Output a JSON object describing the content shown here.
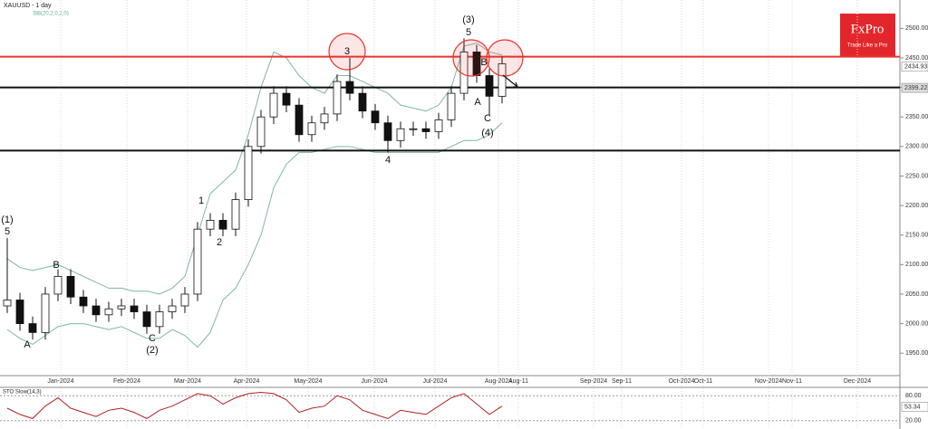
{
  "chart_data": {
    "type": "candlestick",
    "title": "XAUUSD - 1 day",
    "subtitle": "BB(20,2,0,2,0)",
    "ylim": [
      1912,
      2548
    ],
    "yticks": [
      {
        "value": 1950,
        "label": "1950.00"
      },
      {
        "value": 2000,
        "label": "2000.00"
      },
      {
        "value": 2050,
        "label": "2050.00"
      },
      {
        "value": 2100,
        "label": "2100.00"
      },
      {
        "value": 2150,
        "label": "2150.00"
      },
      {
        "value": 2200,
        "label": "2200.00"
      },
      {
        "value": 2250,
        "label": "2250.00"
      },
      {
        "value": 2300,
        "label": "2300.00"
      },
      {
        "value": 2350,
        "label": "2350.00"
      },
      {
        "value": 2400,
        "label": "2400.00"
      },
      {
        "value": 2450,
        "label": "2450.00"
      },
      {
        "value": 2500,
        "label": "2500.00"
      }
    ],
    "open": [
      2030,
      2040,
      2000,
      1985,
      2050,
      2080,
      2045,
      2030,
      2015,
      2025,
      2030,
      2020,
      1995,
      2020,
      2030,
      2050,
      2160,
      2175,
      2160,
      2210,
      2300,
      2350,
      2390,
      2370,
      2320,
      2340,
      2355,
      2410,
      2390,
      2360,
      2340,
      2310,
      2330,
      2330,
      2325,
      2345,
      2390,
      2460,
      2420,
      2385
    ],
    "high": [
      2145,
      2052,
      2012,
      2062,
      2092,
      2092,
      2057,
      2042,
      2037,
      2042,
      2042,
      2032,
      2032,
      2042,
      2062,
      2172,
      2187,
      2187,
      2222,
      2312,
      2362,
      2402,
      2402,
      2382,
      2352,
      2367,
      2422,
      2450,
      2402,
      2372,
      2352,
      2342,
      2342,
      2342,
      2357,
      2402,
      2483,
      2472,
      2432,
      2452
    ],
    "low": [
      2018,
      1988,
      1973,
      1973,
      2038,
      2033,
      2018,
      2003,
      2003,
      2013,
      2008,
      1983,
      1983,
      2008,
      2018,
      2038,
      2148,
      2148,
      2148,
      2198,
      2288,
      2338,
      2358,
      2308,
      2308,
      2328,
      2343,
      2378,
      2348,
      2328,
      2290,
      2298,
      2318,
      2313,
      2313,
      2333,
      2378,
      2408,
      2353,
      2373
    ],
    "close": [
      2040,
      2000,
      1985,
      2050,
      2080,
      2045,
      2030,
      2015,
      2025,
      2030,
      2020,
      1995,
      2020,
      2030,
      2050,
      2160,
      2175,
      2160,
      2210,
      2300,
      2350,
      2390,
      2370,
      2320,
      2340,
      2355,
      2410,
      2390,
      2360,
      2340,
      2310,
      2330,
      2330,
      2325,
      2345,
      2390,
      2460,
      2420,
      2385,
      2440
    ],
    "bands": [
      {
        "color": "#7fb7a4",
        "values": [
          2110,
          2095,
          2090,
          2095,
          2100,
          2090,
          2080,
          2070,
          2060,
          2060,
          2055,
          2055,
          2050,
          2060,
          2080,
          2150,
          2220,
          2240,
          2260,
          2320,
          2400,
          2460,
          2450,
          2420,
          2400,
          2390,
          2420,
          2420,
          2410,
          2400,
          2390,
          2370,
          2365,
          2360,
          2370,
          2400,
          2470,
          2475,
          2460,
          2455
        ]
      },
      {
        "color": "#7fb7a4",
        "values": [
          1990,
          1975,
          1965,
          1980,
          1995,
          2000,
          2000,
          1995,
          1990,
          1995,
          1985,
          1975,
          1975,
          1990,
          1980,
          1960,
          1985,
          2040,
          2060,
          2100,
          2150,
          2230,
          2270,
          2290,
          2290,
          2295,
          2300,
          2300,
          2295,
          2290,
          2290,
          2290,
          2290,
          2290,
          2290,
          2300,
          2310,
          2310,
          2320,
          2340
        ]
      }
    ],
    "levels": [
      {
        "value": 2452,
        "color": "#e8342f"
      },
      {
        "value": 2400,
        "color": "#111111"
      },
      {
        "value": 2293,
        "color": "#111111"
      }
    ],
    "price_labels": [
      {
        "value": 2434.93,
        "label": "2434.93"
      },
      {
        "value": 2399.22,
        "label": "2399.22"
      }
    ],
    "x_labels": [
      "Jan-2024",
      "Feb-2024",
      "Mar-2024",
      "Apr-2024",
      "May-2024",
      "Jun-2024",
      "Jul-2024",
      "Aug-2024",
      "Aug-11",
      "Sep-2024",
      "Sep-11",
      "Oct-2024",
      "Oct-11",
      "Nov-2024",
      "Nov-11",
      "Dec-2024"
    ],
    "annotations": [
      "(1)",
      "5",
      "A",
      "B",
      "C",
      "(2)",
      "1",
      "2",
      "3",
      "4",
      "(3)",
      "5",
      "B",
      "A",
      "C",
      "(4)"
    ],
    "oscillator": {
      "title": "STO Slow(14,3)",
      "ylim": [
        0,
        100
      ],
      "yticks": [
        {
          "value": 20,
          "label": "20.00"
        },
        {
          "value": 80,
          "label": "80.00"
        }
      ],
      "current": {
        "value": 53.34,
        "label": "53.34"
      },
      "color": "#b02020",
      "values": [
        50,
        35,
        25,
        55,
        75,
        50,
        40,
        30,
        45,
        50,
        40,
        25,
        45,
        55,
        70,
        85,
        80,
        60,
        75,
        85,
        88,
        85,
        70,
        40,
        50,
        55,
        80,
        70,
        45,
        35,
        25,
        45,
        40,
        35,
        55,
        75,
        85,
        60,
        35,
        55
      ]
    },
    "logo": {
      "brand": "FxPro",
      "tagline": "Trade Like a Pro"
    }
  }
}
